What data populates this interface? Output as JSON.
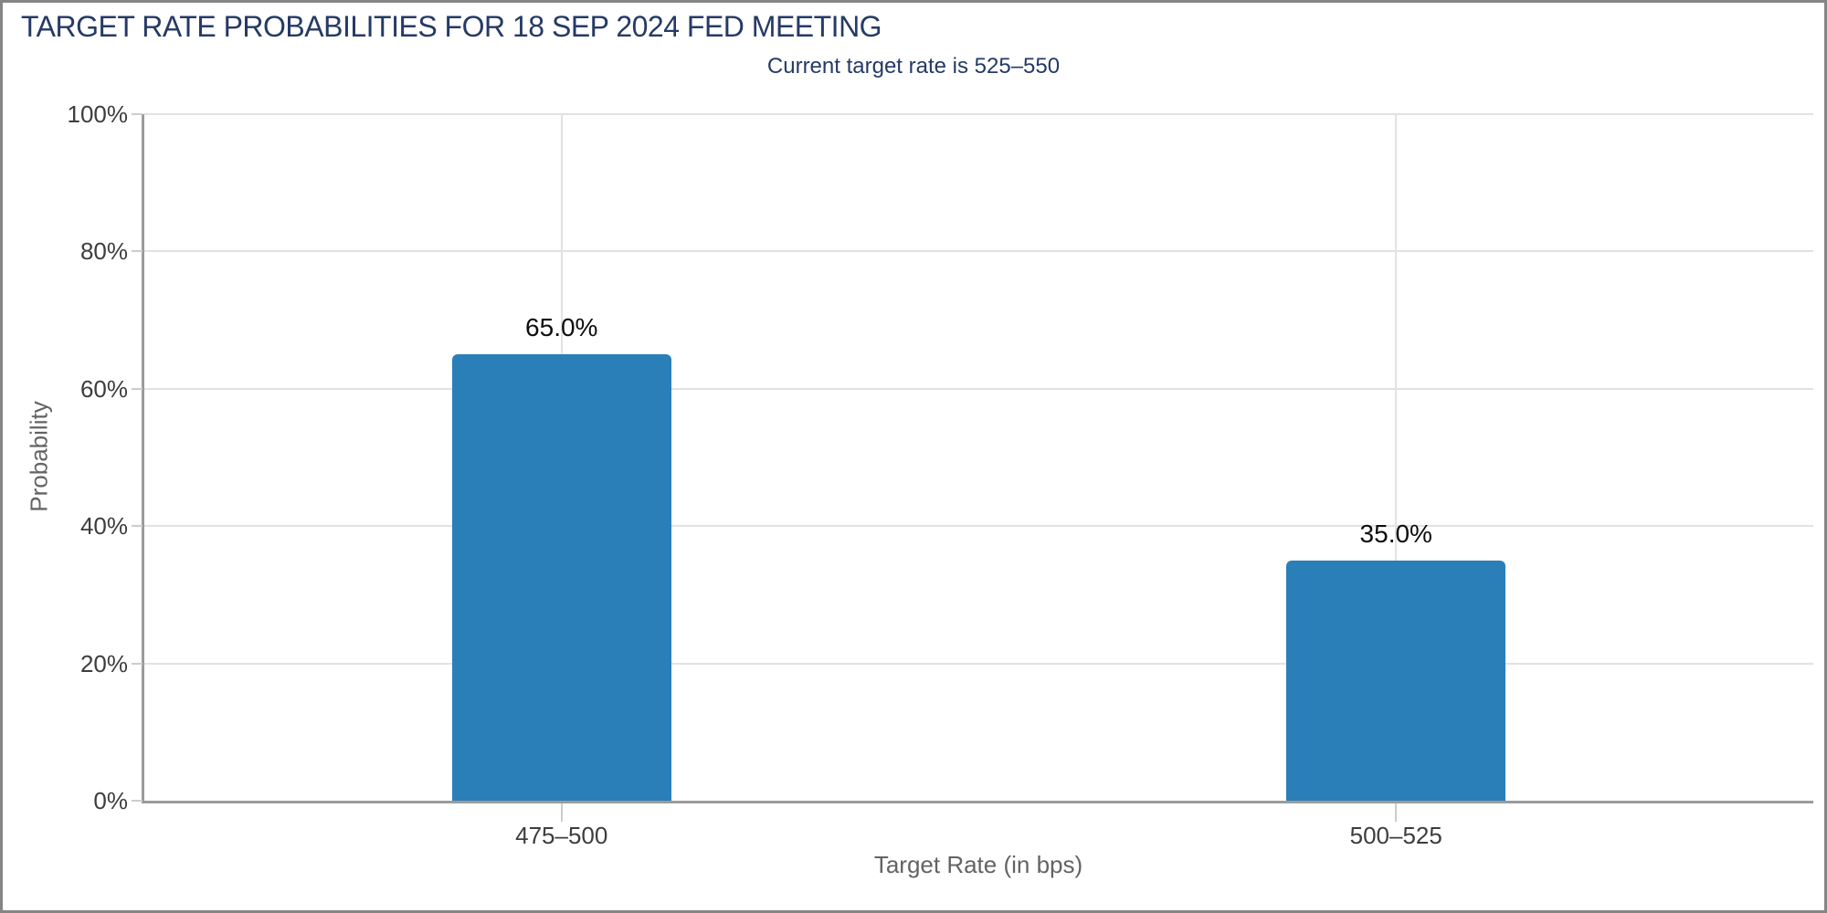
{
  "window": {
    "background": "#ffffff",
    "border_color": "#858585"
  },
  "colors": {
    "title": "#253a66",
    "subtitle": "#253a66",
    "bar": "#2a7fb8",
    "gridline": "#e2e2e2",
    "spine": "#9b9b9b",
    "tick": "#cccccc",
    "tick_label": "#3d3d3d",
    "axis_label": "#636363",
    "value_label": "#0d0d0d"
  },
  "chart_data": {
    "type": "bar",
    "title": "TARGET RATE PROBABILITIES FOR 18 SEP 2024 FED MEETING",
    "subtitle": "Current target rate is 525–550",
    "current_target_rate": "525–550",
    "meeting_date": "18 SEP 2024",
    "categories": [
      "475–500",
      "500–525"
    ],
    "values": [
      65.0,
      35.0
    ],
    "value_labels": [
      "65.0%",
      "35.0%"
    ],
    "xlabel": "Target Rate (in bps)",
    "ylabel": "Probability",
    "ylim": [
      0,
      100
    ],
    "yticks": [
      0,
      20,
      40,
      60,
      80,
      100
    ],
    "ytick_labels": [
      "0%",
      "20%",
      "40%",
      "60%",
      "80%",
      "100%"
    ],
    "grid": true,
    "legend": false
  }
}
